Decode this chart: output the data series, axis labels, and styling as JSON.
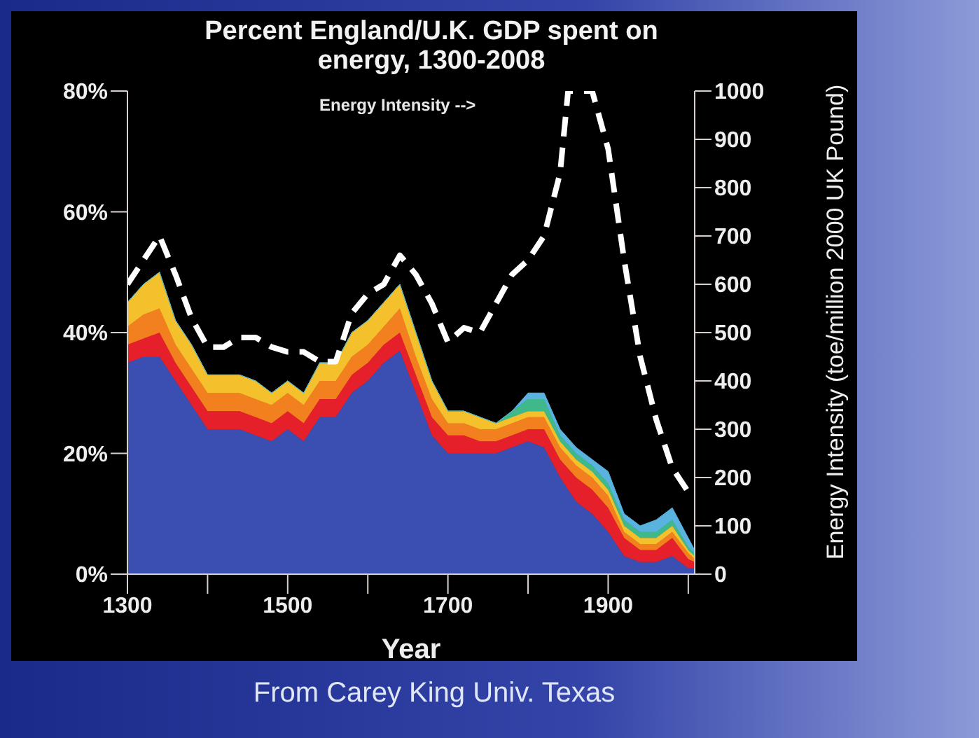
{
  "chart_data": {
    "type": "area",
    "title": "Percent England/U.K. GDP spent on energy, 1300-2008",
    "xlabel": "Year",
    "y2label": "Energy Intensity (toe/million 2000 UK Pound)",
    "annotations": [
      "Energy Intensity -->",
      "From Carey King Univ. Texas"
    ],
    "stacked": true,
    "marker": "none",
    "x": [
      1300,
      1320,
      1340,
      1360,
      1380,
      1400,
      1420,
      1440,
      1460,
      1480,
      1500,
      1520,
      1540,
      1560,
      1580,
      1600,
      1620,
      1640,
      1660,
      1680,
      1700,
      1720,
      1740,
      1760,
      1780,
      1800,
      1820,
      1840,
      1860,
      1880,
      1900,
      1920,
      1940,
      1960,
      1980,
      2000,
      2008
    ],
    "series": [
      {
        "color": "#3b4fb2",
        "values": [
          35,
          36,
          36,
          32,
          28,
          24,
          24,
          24,
          23,
          22,
          24,
          22,
          26,
          26,
          30,
          32,
          35,
          37,
          30,
          23,
          20,
          20,
          20,
          20,
          21,
          22,
          21,
          16,
          12,
          10,
          7,
          3,
          2,
          2,
          3,
          1,
          1
        ]
      },
      {
        "color": "#e5202b",
        "values": [
          3,
          3,
          4,
          3,
          3,
          3,
          3,
          3,
          3,
          3,
          3,
          3,
          3,
          3,
          3,
          3,
          3,
          3,
          3,
          3,
          3,
          3,
          2,
          2,
          2,
          2,
          3,
          3,
          4,
          4,
          4,
          3,
          2,
          2,
          3,
          1.5,
          1
        ]
      },
      {
        "color": "#f2801f",
        "values": [
          3,
          4,
          4,
          3,
          3,
          3,
          3,
          3,
          3,
          3,
          3,
          3,
          3,
          3,
          3,
          3,
          3,
          4,
          3,
          3,
          2,
          2,
          2,
          2,
          2,
          2,
          2,
          2,
          2,
          2,
          2,
          1,
          1,
          1,
          1,
          1,
          0.5
        ]
      },
      {
        "color": "#f4c02c",
        "values": [
          4,
          5,
          6,
          4,
          4,
          3,
          3,
          3,
          3,
          2,
          2,
          2,
          3,
          3,
          4,
          4,
          4,
          4,
          4,
          3,
          2,
          2,
          2,
          1,
          1,
          1,
          1,
          1,
          1,
          1,
          1,
          1,
          1,
          1,
          1,
          0.5,
          0.5
        ]
      },
      {
        "color": "#3fb98c",
        "values": [
          0,
          0,
          0,
          0,
          0,
          0,
          0,
          0,
          0,
          0,
          0,
          0,
          0,
          0,
          0,
          0,
          0,
          0,
          0,
          0,
          0,
          0,
          0,
          0,
          1,
          2,
          2,
          1,
          1,
          1,
          1,
          1,
          1,
          1,
          1,
          0.5,
          0.5
        ]
      },
      {
        "color": "#5ab2de",
        "values": [
          0,
          0,
          0,
          0,
          0,
          0,
          0,
          0,
          0,
          0,
          0,
          0,
          0,
          0,
          0,
          0,
          0,
          0,
          0,
          0,
          0,
          0,
          0,
          0,
          0,
          1,
          1,
          1,
          1,
          1,
          2,
          1,
          1,
          2,
          2,
          1.5,
          0.5
        ]
      },
      {
        "type": "line",
        "axis": "y2",
        "color": "#ffffff",
        "line_style": "dashed",
        "x": [
          1300,
          1320,
          1340,
          1360,
          1380,
          1400,
          1420,
          1440,
          1460,
          1480,
          1500,
          1520,
          1540,
          1560,
          1580,
          1600,
          1620,
          1640,
          1660,
          1680,
          1700,
          1720,
          1740,
          1760,
          1780,
          1800,
          1820,
          1840,
          1850,
          1880,
          1900,
          1920,
          1940,
          1960,
          1980,
          2000
        ],
        "values": [
          600,
          650,
          700,
          620,
          530,
          470,
          470,
          490,
          490,
          470,
          460,
          460,
          440,
          440,
          540,
          580,
          600,
          660,
          620,
          560,
          480,
          510,
          500,
          560,
          620,
          650,
          700,
          830,
          1000,
          1000,
          880,
          650,
          450,
          320,
          220,
          170
        ]
      }
    ],
    "xlim": [
      1300,
      2008
    ],
    "xticks": [
      1300,
      {
        "value": 1400,
        "label": null
      },
      1500,
      {
        "value": 1600,
        "label": null
      },
      1700,
      {
        "value": 1800,
        "label": null
      },
      1900,
      {
        "value": 2000,
        "label": null
      }
    ],
    "ylim": [
      0,
      80
    ],
    "yticks": [
      {
        "value": 0,
        "label": "0%"
      },
      {
        "value": 20,
        "label": "20%"
      },
      {
        "value": 40,
        "label": "40%"
      },
      {
        "value": 60,
        "label": "60%"
      },
      {
        "value": 80,
        "label": "80%"
      }
    ],
    "y2lim": [
      0,
      1000
    ],
    "y2ticks": [
      0,
      100,
      200,
      300,
      400,
      500,
      600,
      700,
      800,
      900,
      1000
    ],
    "grid": false
  }
}
